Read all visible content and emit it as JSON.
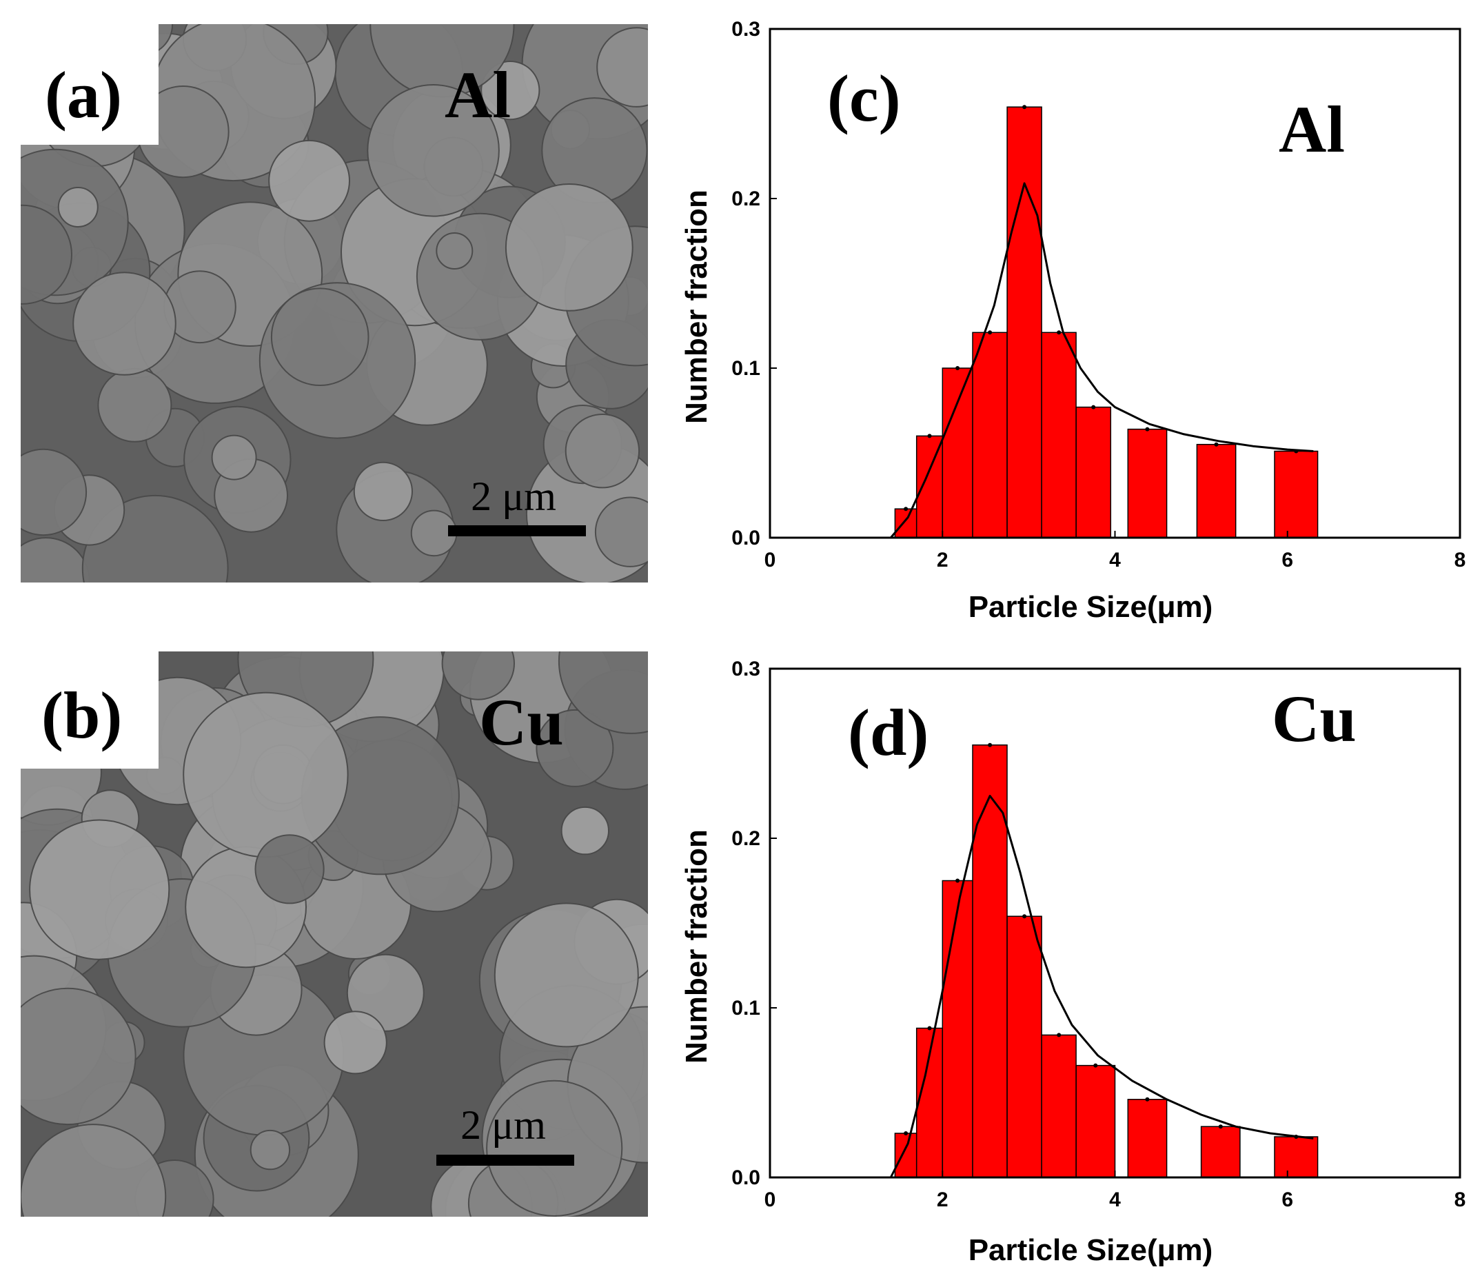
{
  "panels": [
    {
      "key": "a",
      "label": "(a)",
      "element": "Al",
      "scale_bar": "2 μm",
      "colors": {
        "bg": "#5f5f5f",
        "particle": "#8d8d8d"
      }
    },
    {
      "key": "b",
      "label": "(b)",
      "element": "Cu",
      "scale_bar": "2 μm",
      "colors": {
        "bg": "#5a5a5a",
        "particle": "#8a8a8a"
      }
    }
  ],
  "chart_data": [
    {
      "type": "bar",
      "panel_label": "(c)",
      "annotation": "Al",
      "xlabel": "Particle Size(μm)",
      "ylabel": "Number fraction",
      "xlim": [
        0,
        8
      ],
      "ylim": [
        0,
        0.3
      ],
      "xticks": [
        0,
        2,
        4,
        6,
        8
      ],
      "yticks": [
        0.0,
        0.1,
        0.2,
        0.3
      ],
      "xtick_labels": [
        "0",
        "2",
        "4",
        "6",
        "8"
      ],
      "ytick_labels": [
        "0.0",
        "0.1",
        "0.2",
        "0.3"
      ],
      "bars": [
        {
          "x0": 1.45,
          "x1": 1.7,
          "value": 0.017
        },
        {
          "x0": 1.7,
          "x1": 2.0,
          "value": 0.06
        },
        {
          "x0": 2.0,
          "x1": 2.35,
          "value": 0.1
        },
        {
          "x0": 2.35,
          "x1": 2.75,
          "value": 0.121
        },
        {
          "x0": 2.75,
          "x1": 3.15,
          "value": 0.254
        },
        {
          "x0": 3.15,
          "x1": 3.55,
          "value": 0.121
        },
        {
          "x0": 3.55,
          "x1": 3.95,
          "value": 0.077
        },
        {
          "x0": 4.15,
          "x1": 4.6,
          "value": 0.064
        },
        {
          "x0": 4.95,
          "x1": 5.4,
          "value": 0.055
        },
        {
          "x0": 5.85,
          "x1": 6.35,
          "value": 0.051
        }
      ],
      "fit_curve": [
        [
          1.4,
          0.0
        ],
        [
          1.6,
          0.012
        ],
        [
          1.8,
          0.034
        ],
        [
          2.0,
          0.058
        ],
        [
          2.2,
          0.083
        ],
        [
          2.4,
          0.108
        ],
        [
          2.6,
          0.137
        ],
        [
          2.8,
          0.18
        ],
        [
          2.95,
          0.209
        ],
        [
          3.1,
          0.19
        ],
        [
          3.25,
          0.15
        ],
        [
          3.4,
          0.121
        ],
        [
          3.6,
          0.1
        ],
        [
          3.8,
          0.086
        ],
        [
          4.0,
          0.077
        ],
        [
          4.4,
          0.067
        ],
        [
          4.8,
          0.061
        ],
        [
          5.2,
          0.057
        ],
        [
          5.6,
          0.054
        ],
        [
          6.0,
          0.052
        ],
        [
          6.3,
          0.051
        ]
      ],
      "colors": {
        "bar": "#ff0000",
        "bar_edge": "#000000",
        "curve": "#000000"
      }
    },
    {
      "type": "bar",
      "panel_label": "(d)",
      "annotation": "Cu",
      "xlabel": "Particle Size(μm)",
      "ylabel": "Number fraction",
      "xlim": [
        0,
        8
      ],
      "ylim": [
        0,
        0.3
      ],
      "xticks": [
        0,
        2,
        4,
        6,
        8
      ],
      "yticks": [
        0.0,
        0.1,
        0.2,
        0.3
      ],
      "xtick_labels": [
        "0",
        "2",
        "4",
        "6",
        "8"
      ],
      "ytick_labels": [
        "0.0",
        "0.1",
        "0.2",
        "0.3"
      ],
      "bars": [
        {
          "x0": 1.45,
          "x1": 1.7,
          "value": 0.026
        },
        {
          "x0": 1.7,
          "x1": 2.0,
          "value": 0.088
        },
        {
          "x0": 2.0,
          "x1": 2.35,
          "value": 0.175
        },
        {
          "x0": 2.35,
          "x1": 2.75,
          "value": 0.255
        },
        {
          "x0": 2.75,
          "x1": 3.15,
          "value": 0.154
        },
        {
          "x0": 3.15,
          "x1": 3.55,
          "value": 0.084
        },
        {
          "x0": 3.55,
          "x1": 4.0,
          "value": 0.066
        },
        {
          "x0": 4.15,
          "x1": 4.6,
          "value": 0.046
        },
        {
          "x0": 5.0,
          "x1": 5.45,
          "value": 0.03
        },
        {
          "x0": 5.85,
          "x1": 6.35,
          "value": 0.024
        }
      ],
      "fit_curve": [
        [
          1.4,
          0.0
        ],
        [
          1.6,
          0.02
        ],
        [
          1.8,
          0.06
        ],
        [
          2.0,
          0.11
        ],
        [
          2.2,
          0.165
        ],
        [
          2.4,
          0.208
        ],
        [
          2.55,
          0.225
        ],
        [
          2.7,
          0.215
        ],
        [
          2.9,
          0.18
        ],
        [
          3.1,
          0.14
        ],
        [
          3.3,
          0.11
        ],
        [
          3.5,
          0.09
        ],
        [
          3.8,
          0.072
        ],
        [
          4.2,
          0.057
        ],
        [
          4.6,
          0.046
        ],
        [
          5.0,
          0.037
        ],
        [
          5.4,
          0.03
        ],
        [
          5.8,
          0.026
        ],
        [
          6.3,
          0.023
        ]
      ],
      "colors": {
        "bar": "#ff0000",
        "bar_edge": "#000000",
        "curve": "#000000"
      }
    }
  ]
}
